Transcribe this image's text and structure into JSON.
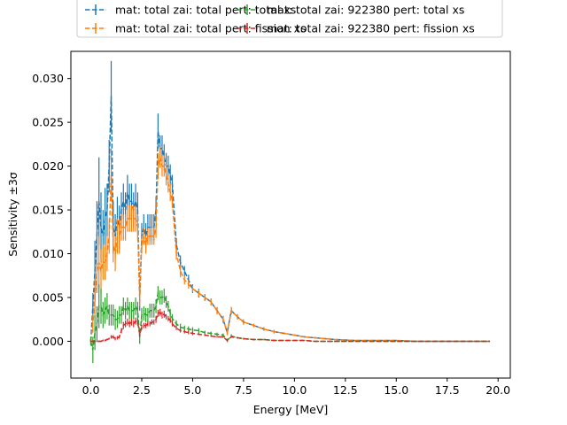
{
  "chart_data": {
    "type": "line",
    "xlabel": "Energy [MeV]",
    "ylabel": "Sensitivity ±3σ",
    "xlim": [
      -0.98,
      20.6
    ],
    "ylim": [
      -0.0042,
      0.0331
    ],
    "x_ticks": [
      0.0,
      2.5,
      5.0,
      7.5,
      10.0,
      12.5,
      15.0,
      17.5,
      20.0
    ],
    "x_tick_labels": [
      "0.0",
      "2.5",
      "5.0",
      "7.5",
      "10.0",
      "12.5",
      "15.0",
      "17.5",
      "20.0"
    ],
    "y_ticks": [
      0.0,
      0.005,
      0.01,
      0.015,
      0.02,
      0.025,
      0.03
    ],
    "y_tick_labels": [
      "0.000",
      "0.005",
      "0.010",
      "0.015",
      "0.020",
      "0.025",
      "0.030"
    ],
    "grid": false,
    "legend_position": "top-center-outside",
    "x": [
      0.0,
      0.1,
      0.2,
      0.3,
      0.4,
      0.5,
      0.6,
      0.7,
      0.8,
      0.9,
      1.0,
      1.1,
      1.2,
      1.3,
      1.4,
      1.5,
      1.6,
      1.7,
      1.8,
      1.9,
      2.0,
      2.1,
      2.2,
      2.3,
      2.4,
      2.5,
      2.6,
      2.7,
      2.8,
      2.9,
      3.0,
      3.1,
      3.2,
      3.3,
      3.4,
      3.5,
      3.6,
      3.7,
      3.8,
      3.9,
      4.0,
      4.2,
      4.4,
      4.6,
      4.8,
      5.0,
      5.3,
      5.6,
      5.9,
      6.2,
      6.5,
      6.7,
      6.9,
      7.2,
      7.5,
      8.0,
      8.5,
      9.0,
      9.5,
      10.0,
      10.5,
      11.0,
      11.5,
      12.0,
      13.0,
      14.0,
      15.0,
      16.0,
      17.0,
      18.0,
      19.0,
      19.6
    ],
    "series": [
      {
        "name": "mat: total zai: total pert: total xs",
        "color": "#1f77b4",
        "values": [
          0.0,
          0.004,
          0.008,
          0.012,
          0.016,
          0.013,
          0.012,
          0.014,
          0.015,
          0.02,
          0.028,
          0.013,
          0.012,
          0.014,
          0.013,
          0.015,
          0.016,
          0.015,
          0.017,
          0.016,
          0.016,
          0.015,
          0.016,
          0.015,
          0.005,
          0.012,
          0.013,
          0.012,
          0.013,
          0.013,
          0.013,
          0.013,
          0.015,
          0.024,
          0.022,
          0.022,
          0.021,
          0.02,
          0.02,
          0.019,
          0.018,
          0.011,
          0.009,
          0.008,
          0.007,
          0.006,
          0.0055,
          0.005,
          0.0045,
          0.0035,
          0.0025,
          0.001,
          0.0035,
          0.0028,
          0.0022,
          0.0018,
          0.0014,
          0.0011,
          0.0009,
          0.0007,
          0.0005,
          0.0004,
          0.0003,
          0.0002,
          0.0001,
          0.0001,
          0.0001,
          0.0,
          0.0,
          0.0,
          0.0,
          0.0
        ],
        "errors": [
          0.0004,
          0.0015,
          0.0035,
          0.004,
          0.005,
          0.004,
          0.003,
          0.0035,
          0.003,
          0.003,
          0.004,
          0.003,
          0.0025,
          0.0025,
          0.0025,
          0.002,
          0.002,
          0.002,
          0.002,
          0.002,
          0.002,
          0.002,
          0.002,
          0.002,
          0.0015,
          0.0015,
          0.0015,
          0.0015,
          0.0015,
          0.0015,
          0.0015,
          0.0015,
          0.0015,
          0.002,
          0.0015,
          0.0015,
          0.0015,
          0.0015,
          0.0012,
          0.0012,
          0.001,
          0.0008,
          0.0008,
          0.0006,
          0.0006,
          0.0005,
          0.0005,
          0.0004,
          0.0004,
          0.0004,
          0.0004,
          0.0003,
          0.0004,
          0.0003,
          0.0003,
          0.0002,
          0.0002,
          0.0002,
          0.0001,
          0.0001,
          0.0001,
          0.0001,
          0.0001,
          0.0,
          0.0,
          0.0,
          0.0,
          0.0,
          0.0,
          0.0,
          0.0,
          0.0
        ]
      },
      {
        "name": "mat: total zai: total pert: fission xs",
        "color": "#ff7f0e",
        "values": [
          0.0,
          0.002,
          0.005,
          0.008,
          0.009,
          0.008,
          0.009,
          0.009,
          0.01,
          0.012,
          0.019,
          0.011,
          0.01,
          0.012,
          0.012,
          0.013,
          0.013,
          0.013,
          0.014,
          0.014,
          0.014,
          0.014,
          0.014,
          0.013,
          0.005,
          0.011,
          0.012,
          0.011,
          0.012,
          0.012,
          0.012,
          0.012,
          0.013,
          0.02,
          0.021,
          0.02,
          0.02,
          0.019,
          0.018,
          0.017,
          0.016,
          0.01,
          0.008,
          0.007,
          0.0065,
          0.006,
          0.0055,
          0.005,
          0.0045,
          0.0035,
          0.0025,
          0.001,
          0.0035,
          0.0028,
          0.0022,
          0.0018,
          0.0014,
          0.0011,
          0.0009,
          0.0007,
          0.0005,
          0.0004,
          0.0003,
          0.0002,
          0.0001,
          0.0001,
          0.0001,
          0.0,
          0.0,
          0.0,
          0.0,
          0.0
        ],
        "errors": [
          0.0003,
          0.001,
          0.002,
          0.0025,
          0.003,
          0.0025,
          0.002,
          0.002,
          0.002,
          0.002,
          0.003,
          0.002,
          0.002,
          0.002,
          0.002,
          0.0015,
          0.0015,
          0.0015,
          0.0015,
          0.0015,
          0.0015,
          0.0015,
          0.0015,
          0.0015,
          0.001,
          0.001,
          0.001,
          0.001,
          0.001,
          0.001,
          0.001,
          0.001,
          0.0012,
          0.0015,
          0.0012,
          0.0012,
          0.0012,
          0.0012,
          0.001,
          0.001,
          0.0008,
          0.0007,
          0.0007,
          0.0005,
          0.0005,
          0.0004,
          0.0004,
          0.0004,
          0.0004,
          0.0004,
          0.0003,
          0.0003,
          0.0004,
          0.0003,
          0.0003,
          0.0002,
          0.0002,
          0.0002,
          0.0001,
          0.0001,
          0.0001,
          0.0001,
          0.0001,
          0.0,
          0.0,
          0.0,
          0.0,
          0.0,
          0.0,
          0.0,
          0.0,
          0.0
        ]
      },
      {
        "name": "mat: total zai: 922380 pert: total xs",
        "color": "#2ca02c",
        "values": [
          0.0,
          -0.001,
          0.001,
          0.002,
          0.004,
          0.004,
          0.003,
          0.0035,
          0.004,
          0.003,
          0.003,
          0.003,
          0.0025,
          0.0025,
          0.003,
          0.003,
          0.004,
          0.0035,
          0.004,
          0.0035,
          0.0035,
          0.0035,
          0.004,
          0.0035,
          0.0005,
          0.003,
          0.0032,
          0.003,
          0.003,
          0.0035,
          0.0035,
          0.0035,
          0.004,
          0.0055,
          0.005,
          0.005,
          0.0052,
          0.0045,
          0.004,
          0.0032,
          0.0026,
          0.002,
          0.0016,
          0.0015,
          0.0014,
          0.0013,
          0.0012,
          0.001,
          0.0009,
          0.0008,
          0.0007,
          0.0001,
          0.0006,
          0.0004,
          0.0003,
          0.0002,
          0.0002,
          0.0001,
          0.0001,
          0.0001,
          0.0001,
          0.0,
          0.0,
          0.0,
          0.0,
          0.0,
          0.0,
          0.0,
          0.0,
          0.0,
          0.0,
          0.0
        ],
        "errors": [
          0.0005,
          0.0015,
          0.002,
          0.002,
          0.0025,
          0.002,
          0.0015,
          0.0015,
          0.0015,
          0.0012,
          0.0012,
          0.0012,
          0.0012,
          0.001,
          0.001,
          0.001,
          0.001,
          0.001,
          0.001,
          0.001,
          0.001,
          0.001,
          0.001,
          0.001,
          0.0008,
          0.0008,
          0.0008,
          0.0008,
          0.0008,
          0.0008,
          0.0008,
          0.0008,
          0.0008,
          0.0008,
          0.0008,
          0.0008,
          0.0008,
          0.0007,
          0.0006,
          0.0005,
          0.0005,
          0.0004,
          0.0004,
          0.0003,
          0.0003,
          0.0003,
          0.0003,
          0.0002,
          0.0002,
          0.0002,
          0.0002,
          0.0002,
          0.0002,
          0.0001,
          0.0001,
          0.0001,
          0.0001,
          0.0001,
          0.0,
          0.0,
          0.0,
          0.0,
          0.0,
          0.0,
          0.0,
          0.0,
          0.0,
          0.0,
          0.0,
          0.0,
          0.0,
          0.0
        ]
      },
      {
        "name": "mat: total zai: 922380 pert: fission xs",
        "color": "#d62728",
        "values": [
          0.0,
          0.0,
          0.0,
          0.0,
          0.0,
          0.0,
          0.0001,
          0.0001,
          0.0002,
          0.0003,
          0.0005,
          0.0005,
          0.0003,
          0.0004,
          0.0005,
          0.0012,
          0.0018,
          0.002,
          0.0022,
          0.002,
          0.0022,
          0.002,
          0.0023,
          0.0022,
          0.0008,
          0.0016,
          0.0018,
          0.0018,
          0.002,
          0.002,
          0.0022,
          0.0022,
          0.0025,
          0.0032,
          0.0033,
          0.003,
          0.0031,
          0.0028,
          0.0026,
          0.0024,
          0.002,
          0.0015,
          0.0012,
          0.0011,
          0.001,
          0.0009,
          0.0008,
          0.0007,
          0.0006,
          0.0005,
          0.0005,
          0.0001,
          0.0005,
          0.0004,
          0.0003,
          0.0002,
          0.0002,
          0.0001,
          0.0001,
          0.0001,
          0.0001,
          0.0,
          0.0,
          0.0,
          0.0,
          0.0,
          0.0,
          0.0,
          0.0,
          0.0,
          0.0,
          0.0
        ],
        "errors": [
          0.0001,
          0.0001,
          0.0001,
          0.0001,
          0.0001,
          0.0001,
          0.0001,
          0.0001,
          0.0001,
          0.0001,
          0.0002,
          0.0002,
          0.0002,
          0.0002,
          0.0002,
          0.0003,
          0.0004,
          0.0004,
          0.0004,
          0.0004,
          0.0004,
          0.0004,
          0.0004,
          0.0004,
          0.0003,
          0.0003,
          0.0003,
          0.0003,
          0.0003,
          0.0003,
          0.0003,
          0.0003,
          0.0004,
          0.0004,
          0.0004,
          0.0004,
          0.0004,
          0.0003,
          0.0003,
          0.0003,
          0.0003,
          0.0002,
          0.0002,
          0.0002,
          0.0002,
          0.0002,
          0.0001,
          0.0001,
          0.0001,
          0.0001,
          0.0001,
          0.0001,
          0.0001,
          0.0001,
          0.0001,
          0.0001,
          0.0,
          0.0,
          0.0,
          0.0,
          0.0,
          0.0,
          0.0,
          0.0,
          0.0,
          0.0,
          0.0,
          0.0,
          0.0,
          0.0,
          0.0,
          0.0
        ]
      }
    ]
  }
}
